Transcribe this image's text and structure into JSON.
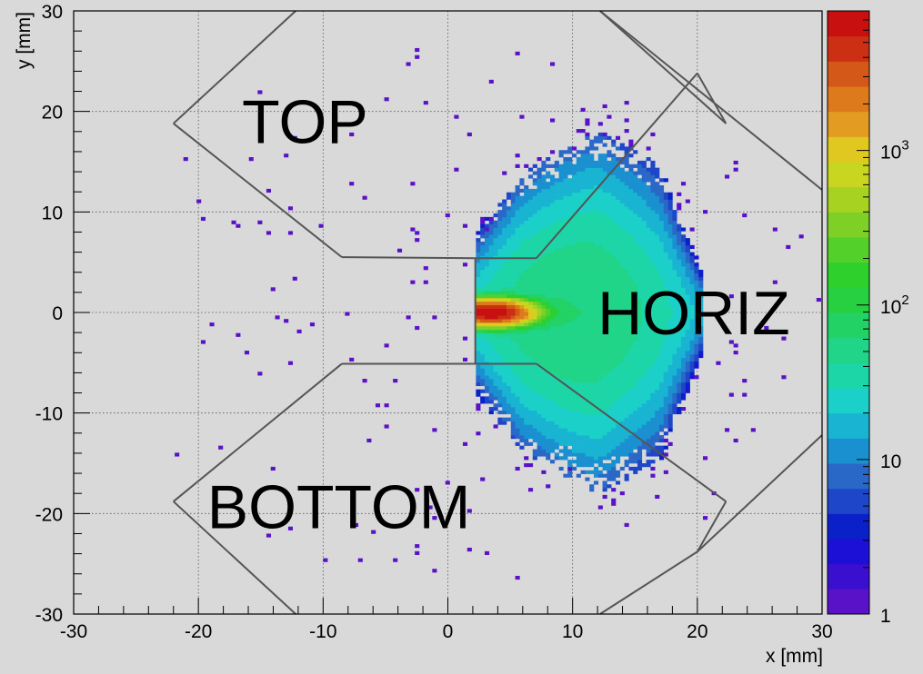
{
  "chart_data": {
    "type": "heatmap",
    "title": "",
    "xlabel": "x [mm]",
    "ylabel": "y [mm]",
    "xlim": [
      -30,
      30
    ],
    "ylim": [
      -30,
      30
    ],
    "xticks": [
      -30,
      -20,
      -10,
      0,
      10,
      20,
      30
    ],
    "yticks": [
      -30,
      -20,
      -10,
      0,
      10,
      20,
      30
    ],
    "grid": true,
    "colorbar": {
      "scale": "log",
      "range": [
        1,
        8000
      ],
      "tick_labels": [
        {
          "value": 1,
          "label": "1"
        },
        {
          "value": 10,
          "label": "10"
        },
        {
          "value": 100,
          "label": "10",
          "exp": "2"
        },
        {
          "value": 1000,
          "label": "10",
          "exp": "3"
        }
      ],
      "colors": [
        "#5a12c8",
        "#3b0fd0",
        "#1c10d6",
        "#0a20c8",
        "#1e46c8",
        "#2a68c8",
        "#1a90d0",
        "#18b4d2",
        "#1ad0c8",
        "#1cd6a8",
        "#20d488",
        "#22d264",
        "#26d040",
        "#2ed02c",
        "#54d02a",
        "#7ed026",
        "#a8d222",
        "#c8d620",
        "#e0c820",
        "#e29c22",
        "#dc7a1c",
        "#d45818",
        "#cc3014",
        "#c81010"
      ]
    },
    "regions": [
      {
        "name": "TOP",
        "polygon": [
          [
            -22,
            18.8
          ],
          [
            -17,
            25.3
          ],
          [
            -12.2,
            30
          ],
          [
            12.2,
            30
          ],
          [
            30,
            12.2
          ],
          [
            30,
            12.3
          ],
          [
            20,
            23.8
          ],
          [
            15.2,
            19.8
          ],
          [
            7.1,
            5.4
          ],
          [
            2.2,
            5.4
          ],
          [
            -8.5,
            5.5
          ],
          [
            -22,
            18.8
          ]
        ]
      },
      {
        "name": "HORIZ",
        "polygon": [
          [
            2.2,
            5.4
          ],
          [
            7.1,
            5.4
          ],
          [
            20,
            23.8
          ],
          [
            22.3,
            18.8
          ],
          [
            30,
            12.3
          ],
          [
            30,
            -12.2
          ],
          [
            22.2,
            -18.8
          ],
          [
            20,
            -23.8
          ],
          [
            7.1,
            -5.1
          ],
          [
            2.2,
            -5.1
          ],
          [
            2.2,
            5.4
          ]
        ]
      },
      {
        "name": "BOTTOM",
        "polygon": [
          [
            -22,
            -18.8
          ],
          [
            -8.5,
            -5.1
          ],
          [
            2.2,
            -5.1
          ],
          [
            7.1,
            -5.1
          ],
          [
            20,
            -23.8
          ],
          [
            12.2,
            -30
          ],
          [
            -12.2,
            -30
          ],
          [
            -22,
            -18.8
          ]
        ]
      }
    ],
    "region_outline_segments": [
      [
        [
          -22,
          18.8
        ],
        [
          -12.2,
          30
        ]
      ],
      [
        [
          12.2,
          30
        ],
        [
          30,
          12.2
        ]
      ],
      [
        [
          -22,
          18.8
        ],
        [
          -8.5,
          5.5
        ]
      ],
      [
        [
          -8.5,
          5.5
        ],
        [
          2.2,
          5.4
        ]
      ],
      [
        [
          2.2,
          5.4
        ],
        [
          7.1,
          5.4
        ]
      ],
      [
        [
          7.1,
          5.4
        ],
        [
          20,
          23.8
        ]
      ],
      [
        [
          20,
          23.8
        ],
        [
          22.3,
          18.8
        ]
      ],
      [
        [
          22.3,
          18.8
        ],
        [
          12.2,
          30
        ]
      ],
      [
        [
          2.2,
          5.4
        ],
        [
          2.2,
          -5.1
        ]
      ],
      [
        [
          -8.5,
          -5.1
        ],
        [
          2.2,
          -5.1
        ]
      ],
      [
        [
          2.2,
          -5.1
        ],
        [
          7.1,
          -5.1
        ]
      ],
      [
        [
          -22,
          -18.8
        ],
        [
          -8.5,
          -5.1
        ]
      ],
      [
        [
          -22,
          -18.8
        ],
        [
          -12.2,
          -30
        ]
      ],
      [
        [
          7.1,
          -5.1
        ],
        [
          22.3,
          -18.8
        ]
      ],
      [
        [
          22.3,
          -18.8
        ],
        [
          20,
          -23.8
        ]
      ],
      [
        [
          20,
          -23.8
        ],
        [
          12.2,
          -30
        ]
      ],
      [
        [
          20,
          -23.8
        ],
        [
          30,
          -12.2
        ]
      ]
    ],
    "annotations": [
      {
        "text": "TOP",
        "x": -16.5,
        "y": 19
      },
      {
        "text": "HORIZ",
        "x": 12,
        "y": 0
      },
      {
        "text": "BOTTOM",
        "x": -19.3,
        "y": -19.3
      }
    ],
    "distribution": {
      "description": "fan-shaped intensity distribution to the right of the x=2.2 mm edge",
      "peak": {
        "x": 3.5,
        "y": 0,
        "value": 8000
      },
      "core_sigma_x": 1.6,
      "core_sigma_y": 0.6,
      "fan_extent_x": [
        2.2,
        20.5
      ],
      "fan_half_width_at_x": [
        [
          2.2,
          8
        ],
        [
          6,
          14
        ],
        [
          12,
          18
        ],
        [
          17,
          15
        ],
        [
          20.5,
          4
        ]
      ]
    }
  }
}
